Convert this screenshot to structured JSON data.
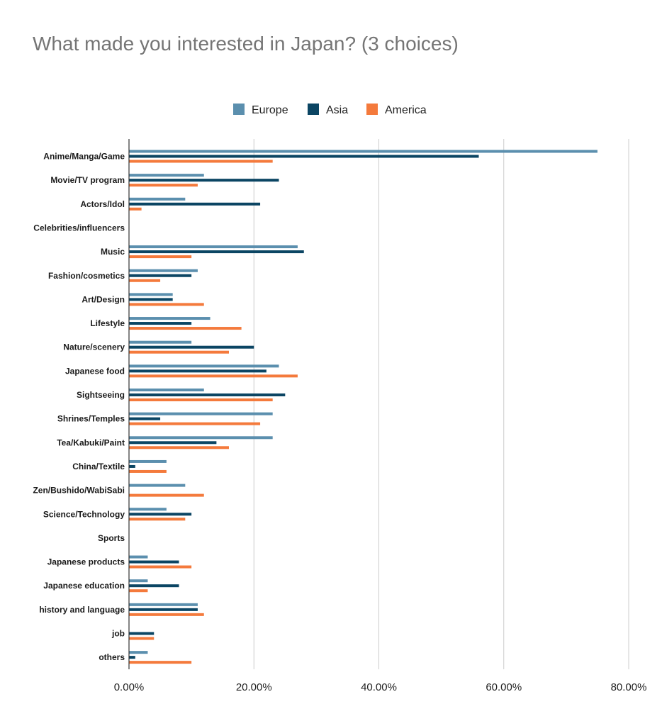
{
  "chart_data": {
    "type": "bar",
    "orientation": "horizontal",
    "title": "What made you interested in Japan? (3 choices)",
    "xlabel": "",
    "ylabel": "",
    "xlim": [
      0,
      80
    ],
    "x_ticks": [
      "0.00%",
      "20.00%",
      "40.00%",
      "60.00%",
      "80.00%"
    ],
    "x_tick_values": [
      0,
      20,
      40,
      60,
      80
    ],
    "grid": "vertical",
    "legend_position": "top-center",
    "categories": [
      "Anime/Manga/Game",
      "Movie/TV program",
      "Actors/Idol",
      "Celebrities/influencers",
      "Music",
      "Fashion/cosmetics",
      "Art/Design",
      "Lifestyle",
      "Nature/scenery",
      "Japanese food",
      "Sightseeing",
      "Shrines/Temples",
      "Tea/Kabuki/Paint",
      "China/Textile",
      "Zen/Bushido/WabiSabi",
      "Science/Technology",
      "Sports",
      "Japanese products",
      "Japanese education",
      "history and language",
      "job",
      "others"
    ],
    "series": [
      {
        "name": "Europe",
        "color": "#5b8fae",
        "values": [
          75,
          12,
          9,
          0,
          27,
          11,
          7,
          13,
          10,
          24,
          12,
          23,
          23,
          6,
          9,
          6,
          0,
          3,
          3,
          11,
          0,
          3
        ]
      },
      {
        "name": "Asia",
        "color": "#0b4563",
        "values": [
          56,
          24,
          21,
          0,
          28,
          10,
          7,
          10,
          20,
          22,
          25,
          5,
          14,
          1,
          0,
          10,
          0,
          8,
          8,
          11,
          4,
          1
        ]
      },
      {
        "name": "America",
        "color": "#f47a3c",
        "values": [
          23,
          11,
          2,
          0,
          10,
          5,
          12,
          18,
          16,
          27,
          23,
          21,
          16,
          6,
          12,
          9,
          0,
          10,
          3,
          12,
          4,
          10
        ]
      }
    ]
  }
}
